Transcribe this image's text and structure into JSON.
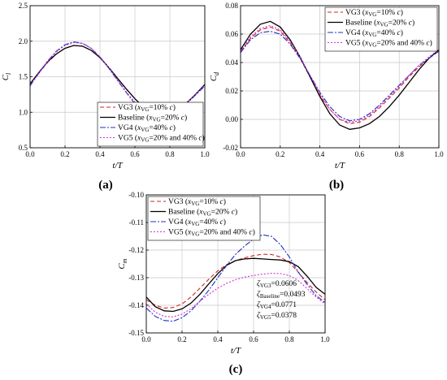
{
  "chart_data": [
    {
      "panel": "(a)",
      "type": "line",
      "xlabel": "t/T",
      "ylabel": "Cl",
      "ylabel_main": "C",
      "ylabel_sub": "l",
      "xlim": [
        0.0,
        1.0
      ],
      "ylim": [
        0.5,
        2.5
      ],
      "xticks": [
        "0.0",
        "0.2",
        "0.4",
        "0.6",
        "0.8",
        "1.0"
      ],
      "yticks": [
        "0.5",
        "1.0",
        "1.5",
        "2.0",
        "2.5"
      ],
      "grid": true,
      "legend_position": "bottom-right",
      "series": [
        {
          "name": "VG3 (xVG=10% c)",
          "legend_parts": [
            "VG3 (",
            "x",
            "VG",
            "=10% ",
            "c",
            ")"
          ],
          "color": "#d62020",
          "dash": "5,3",
          "x": [
            0.0,
            0.05,
            0.1,
            0.15,
            0.2,
            0.25,
            0.3,
            0.35,
            0.4,
            0.45,
            0.5,
            0.55,
            0.6,
            0.65,
            0.7,
            0.75,
            0.8,
            0.85,
            0.9,
            0.95,
            1.0
          ],
          "y": [
            1.4,
            1.55,
            1.7,
            1.82,
            1.9,
            1.94,
            1.93,
            1.87,
            1.77,
            1.63,
            1.48,
            1.33,
            1.19,
            1.07,
            1.01,
            0.98,
            0.99,
            1.05,
            1.14,
            1.26,
            1.38
          ]
        },
        {
          "name": "Baseline (xVG=20% c)",
          "legend_parts": [
            "Baseline (",
            "x",
            "VG",
            "=20% ",
            "c",
            ")"
          ],
          "color": "#000000",
          "dash": "",
          "x": [
            0.0,
            0.05,
            0.1,
            0.15,
            0.2,
            0.25,
            0.3,
            0.35,
            0.4,
            0.45,
            0.5,
            0.55,
            0.6,
            0.65,
            0.7,
            0.75,
            0.8,
            0.85,
            0.9,
            0.95,
            1.0
          ],
          "y": [
            1.4,
            1.56,
            1.71,
            1.82,
            1.9,
            1.94,
            1.93,
            1.87,
            1.77,
            1.63,
            1.48,
            1.33,
            1.19,
            1.07,
            1.0,
            0.97,
            0.98,
            1.04,
            1.14,
            1.26,
            1.39
          ]
        },
        {
          "name": "VG4 (xVG=40% c)",
          "legend_parts": [
            "VG4 (",
            "x",
            "VG",
            "=40% ",
            "c",
            ")"
          ],
          "color": "#2030c0",
          "dash": "7,2,2,2",
          "x": [
            0.0,
            0.05,
            0.1,
            0.15,
            0.2,
            0.25,
            0.3,
            0.35,
            0.4,
            0.45,
            0.5,
            0.55,
            0.6,
            0.65,
            0.7,
            0.75,
            0.8,
            0.85,
            0.9,
            0.95,
            1.0
          ],
          "y": [
            1.37,
            1.55,
            1.72,
            1.86,
            1.95,
            1.99,
            1.97,
            1.9,
            1.78,
            1.62,
            1.45,
            1.28,
            1.12,
            1.0,
            0.94,
            0.92,
            0.94,
            1.02,
            1.13,
            1.25,
            1.37
          ]
        },
        {
          "name": "VG5 (xVG=20% and 40% c)",
          "legend_parts": [
            "VG5 (",
            "x",
            "VG",
            "=20% and 40% ",
            "c",
            ")"
          ],
          "color": "#d030d0",
          "dash": "2,2",
          "x": [
            0.0,
            0.05,
            0.1,
            0.15,
            0.2,
            0.25,
            0.3,
            0.35,
            0.4,
            0.45,
            0.5,
            0.55,
            0.6,
            0.65,
            0.7,
            0.75,
            0.8,
            0.85,
            0.9,
            0.95,
            1.0
          ],
          "y": [
            1.38,
            1.55,
            1.71,
            1.85,
            1.94,
            1.98,
            1.97,
            1.9,
            1.78,
            1.63,
            1.46,
            1.29,
            1.14,
            1.02,
            0.95,
            0.93,
            0.95,
            1.03,
            1.14,
            1.26,
            1.38
          ]
        }
      ]
    },
    {
      "panel": "(b)",
      "type": "line",
      "xlabel": "t/T",
      "ylabel": "Cd",
      "ylabel_main": "C",
      "ylabel_sub": "d",
      "xlim": [
        0.0,
        1.0
      ],
      "ylim": [
        -0.02,
        0.08
      ],
      "xticks": [
        "0.0",
        "0.2",
        "0.4",
        "0.6",
        "0.8",
        "1.0"
      ],
      "yticks": [
        "-0.02",
        "0.00",
        "0.02",
        "0.04",
        "0.06",
        "0.08"
      ],
      "grid": true,
      "legend_position": "top-right",
      "series": [
        {
          "name": "VG3 (xVG=10% c)",
          "legend_parts": [
            "VG3 (",
            "x",
            "VG",
            "=10% ",
            "c",
            ")"
          ],
          "color": "#d62020",
          "dash": "5,3",
          "x": [
            0.0,
            0.05,
            0.1,
            0.15,
            0.2,
            0.25,
            0.3,
            0.35,
            0.4,
            0.45,
            0.5,
            0.55,
            0.6,
            0.65,
            0.7,
            0.75,
            0.8,
            0.85,
            0.9,
            0.95,
            1.0
          ],
          "y": [
            0.048,
            0.057,
            0.063,
            0.065,
            0.062,
            0.054,
            0.043,
            0.03,
            0.017,
            0.007,
            0.0,
            -0.003,
            -0.002,
            0.002,
            0.008,
            0.015,
            0.022,
            0.03,
            0.037,
            0.043,
            0.048
          ]
        },
        {
          "name": "Baseline (xVG=20% c)",
          "legend_parts": [
            "Baseline (",
            "x",
            "VG",
            "=20% ",
            "c",
            ")"
          ],
          "color": "#000000",
          "dash": "",
          "x": [
            0.0,
            0.05,
            0.1,
            0.15,
            0.2,
            0.25,
            0.3,
            0.35,
            0.4,
            0.45,
            0.5,
            0.55,
            0.6,
            0.65,
            0.7,
            0.75,
            0.8,
            0.85,
            0.9,
            0.95,
            1.0
          ],
          "y": [
            0.049,
            0.06,
            0.067,
            0.069,
            0.065,
            0.056,
            0.044,
            0.03,
            0.016,
            0.004,
            -0.004,
            -0.007,
            -0.006,
            -0.003,
            0.002,
            0.009,
            0.017,
            0.026,
            0.035,
            0.043,
            0.049
          ]
        },
        {
          "name": "VG4 (xVG=40% c)",
          "legend_parts": [
            "VG4 (",
            "x",
            "VG",
            "=40% ",
            "c",
            ")"
          ],
          "color": "#2030c0",
          "dash": "7,2,2,2",
          "x": [
            0.0,
            0.05,
            0.1,
            0.15,
            0.2,
            0.25,
            0.3,
            0.35,
            0.4,
            0.45,
            0.5,
            0.55,
            0.6,
            0.65,
            0.7,
            0.75,
            0.8,
            0.85,
            0.9,
            0.95,
            1.0
          ],
          "y": [
            0.047,
            0.056,
            0.061,
            0.062,
            0.06,
            0.053,
            0.043,
            0.031,
            0.019,
            0.009,
            0.002,
            -0.001,
            0.0,
            0.004,
            0.01,
            0.017,
            0.024,
            0.031,
            0.038,
            0.043,
            0.048
          ]
        },
        {
          "name": "VG5 (xVG=20% and 40% c)",
          "legend_parts": [
            "VG5 (",
            "x",
            "VG",
            "=20% and 40% ",
            "c",
            ")"
          ],
          "color": "#d030d0",
          "dash": "2,2",
          "x": [
            0.0,
            0.05,
            0.1,
            0.15,
            0.2,
            0.25,
            0.3,
            0.35,
            0.4,
            0.45,
            0.5,
            0.55,
            0.6,
            0.65,
            0.7,
            0.75,
            0.8,
            0.85,
            0.9,
            0.95,
            1.0
          ],
          "y": [
            0.048,
            0.058,
            0.064,
            0.066,
            0.063,
            0.055,
            0.044,
            0.031,
            0.018,
            0.007,
            0.0,
            -0.002,
            -0.001,
            0.003,
            0.009,
            0.016,
            0.023,
            0.031,
            0.038,
            0.044,
            0.049
          ]
        }
      ]
    },
    {
      "panel": "(c)",
      "type": "line",
      "xlabel": "t/T",
      "ylabel": "Cm",
      "ylabel_main": "C",
      "ylabel_sub": "m",
      "xlim": [
        0.0,
        1.0
      ],
      "ylim": [
        -0.15,
        -0.1
      ],
      "xticks": [
        "0.0",
        "0.2",
        "0.4",
        "0.6",
        "0.8",
        "1.0"
      ],
      "yticks": [
        "-0.15",
        "-0.14",
        "-0.13",
        "-0.12",
        "-0.11",
        "-0.10"
      ],
      "grid": true,
      "legend_position": "top-left",
      "annotations": [
        {
          "main": "ζ",
          "sub": "VG3",
          "value": "=0.0606"
        },
        {
          "main": "ζ",
          "sub": "Baseline",
          "value": "=0.0493"
        },
        {
          "main": "ζ",
          "sub": "VG4",
          "value": "=0.0771"
        },
        {
          "main": "ζ",
          "sub": "VG5",
          "value": "=0.0378"
        }
      ],
      "series": [
        {
          "name": "VG3 (xVG=10% c)",
          "legend_parts": [
            "VG3 (",
            "x",
            "VG",
            "=10% ",
            "c",
            ")"
          ],
          "color": "#d62020",
          "dash": "5,3",
          "x": [
            0.0,
            0.05,
            0.1,
            0.15,
            0.2,
            0.25,
            0.3,
            0.35,
            0.4,
            0.45,
            0.5,
            0.55,
            0.6,
            0.65,
            0.7,
            0.75,
            0.8,
            0.85,
            0.9,
            0.95,
            1.0
          ],
          "y": [
            -0.138,
            -0.14,
            -0.141,
            -0.1408,
            -0.1395,
            -0.137,
            -0.1338,
            -0.1305,
            -0.1275,
            -0.1252,
            -0.1238,
            -0.1228,
            -0.122,
            -0.1215,
            -0.1216,
            -0.1225,
            -0.1245,
            -0.128,
            -0.1318,
            -0.1352,
            -0.138
          ]
        },
        {
          "name": "Baseline (xVG=20% c)",
          "legend_parts": [
            "Baseline (",
            "x",
            "VG",
            "=20% ",
            "c",
            ")"
          ],
          "color": "#000000",
          "dash": "",
          "x": [
            0.0,
            0.05,
            0.1,
            0.15,
            0.2,
            0.25,
            0.3,
            0.35,
            0.4,
            0.45,
            0.5,
            0.55,
            0.6,
            0.65,
            0.7,
            0.75,
            0.8,
            0.85,
            0.9,
            0.95,
            1.0
          ],
          "y": [
            -0.137,
            -0.1405,
            -0.142,
            -0.1422,
            -0.1413,
            -0.1392,
            -0.136,
            -0.1322,
            -0.1285,
            -0.1255,
            -0.1238,
            -0.1232,
            -0.123,
            -0.1232,
            -0.1234,
            -0.1236,
            -0.1242,
            -0.126,
            -0.1295,
            -0.1335,
            -0.136
          ]
        },
        {
          "name": "VG4 (xVG=40% c)",
          "legend_parts": [
            "VG4 (",
            "x",
            "VG",
            "=40% ",
            "c",
            ")"
          ],
          "color": "#2030c0",
          "dash": "7,2,2,2",
          "x": [
            0.0,
            0.05,
            0.1,
            0.15,
            0.2,
            0.25,
            0.3,
            0.35,
            0.4,
            0.45,
            0.5,
            0.55,
            0.6,
            0.65,
            0.7,
            0.75,
            0.8,
            0.85,
            0.9,
            0.95,
            1.0
          ],
          "y": [
            -0.141,
            -0.144,
            -0.1455,
            -0.1458,
            -0.1445,
            -0.142,
            -0.1385,
            -0.1345,
            -0.13,
            -0.1255,
            -0.1215,
            -0.1185,
            -0.116,
            -0.1145,
            -0.115,
            -0.118,
            -0.1225,
            -0.128,
            -0.1325,
            -0.1365,
            -0.139
          ]
        },
        {
          "name": "VG5 (xVG=20% and 40% c)",
          "legend_parts": [
            "VG5 (",
            "x",
            "VG",
            "=20% and 40% ",
            "c",
            ")"
          ],
          "color": "#d030d0",
          "dash": "2,2",
          "x": [
            0.0,
            0.05,
            0.1,
            0.15,
            0.2,
            0.25,
            0.3,
            0.35,
            0.4,
            0.45,
            0.5,
            0.55,
            0.6,
            0.65,
            0.7,
            0.75,
            0.8,
            0.85,
            0.9,
            0.95,
            1.0
          ],
          "y": [
            -0.1395,
            -0.1425,
            -0.144,
            -0.1442,
            -0.1432,
            -0.1412,
            -0.1385,
            -0.136,
            -0.1338,
            -0.132,
            -0.1307,
            -0.1298,
            -0.1292,
            -0.1287,
            -0.1284,
            -0.1285,
            -0.1292,
            -0.131,
            -0.134,
            -0.137,
            -0.1395
          ]
        }
      ]
    }
  ]
}
